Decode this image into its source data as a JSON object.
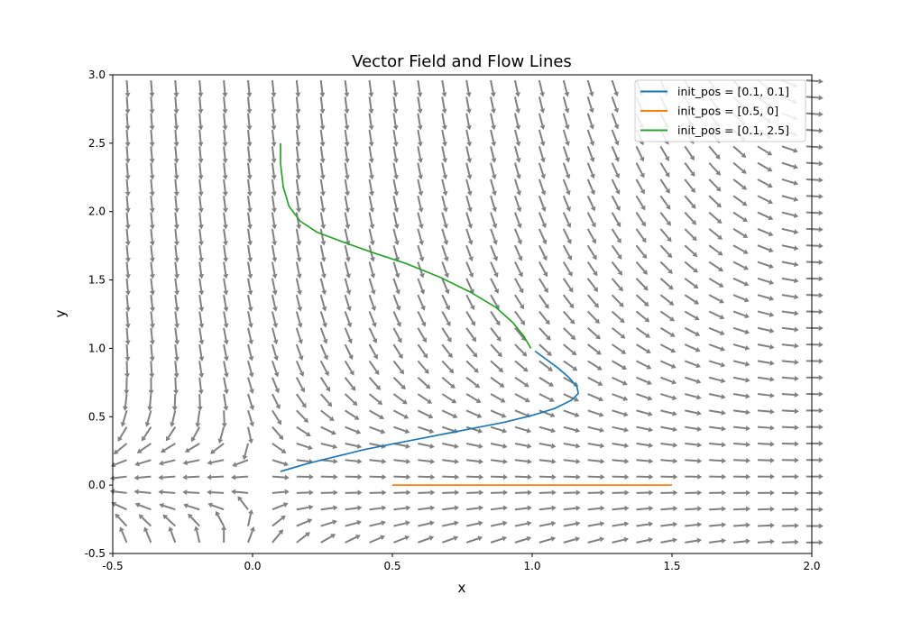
{
  "chart_data": {
    "type": "line",
    "title": "Vector Field and Flow Lines",
    "xlabel": "x",
    "ylabel": "y",
    "xlim": [
      -0.5,
      2.0
    ],
    "ylim": [
      -0.5,
      3.0
    ],
    "xticks": [
      "-0.5",
      "0.0",
      "0.5",
      "1.0",
      "1.5",
      "2.0"
    ],
    "yticks": [
      "-0.5",
      "0.0",
      "0.5",
      "1.0",
      "1.5",
      "2.0",
      "2.5",
      "3.0"
    ],
    "grid": false,
    "legend_position": "top-right",
    "quiver": {
      "color": "#808080",
      "x_range": [
        -0.45,
        1.98
      ],
      "y_range": [
        -0.42,
        2.96
      ],
      "nx": 29,
      "ny": 29
    },
    "series": [
      {
        "name": "init_pos = [0.1, 0.1]",
        "color": "#1f77b4",
        "x": [
          0.1,
          0.2,
          0.3,
          0.4,
          0.5,
          0.6,
          0.7,
          0.8,
          0.9,
          1.0,
          1.08,
          1.14,
          1.165,
          1.16,
          1.13,
          1.09,
          1.05,
          1.01
        ],
        "y": [
          0.1,
          0.16,
          0.21,
          0.26,
          0.3,
          0.34,
          0.38,
          0.42,
          0.46,
          0.51,
          0.56,
          0.62,
          0.67,
          0.72,
          0.79,
          0.86,
          0.92,
          0.98
        ]
      },
      {
        "name": "init_pos = [0.5, 0]",
        "color": "#ff7f0e",
        "x": [
          0.5,
          1.5
        ],
        "y": [
          0.0,
          0.0
        ]
      },
      {
        "name": "init_pos = [0.1, 2.5]",
        "color": "#2ca02c",
        "x": [
          0.1,
          0.1,
          0.11,
          0.13,
          0.17,
          0.23,
          0.32,
          0.43,
          0.55,
          0.67,
          0.78,
          0.87,
          0.93,
          0.97,
          0.995
        ],
        "y": [
          2.5,
          2.35,
          2.18,
          2.04,
          1.93,
          1.85,
          1.78,
          1.7,
          1.62,
          1.52,
          1.41,
          1.3,
          1.19,
          1.09,
          1.0
        ]
      }
    ]
  }
}
